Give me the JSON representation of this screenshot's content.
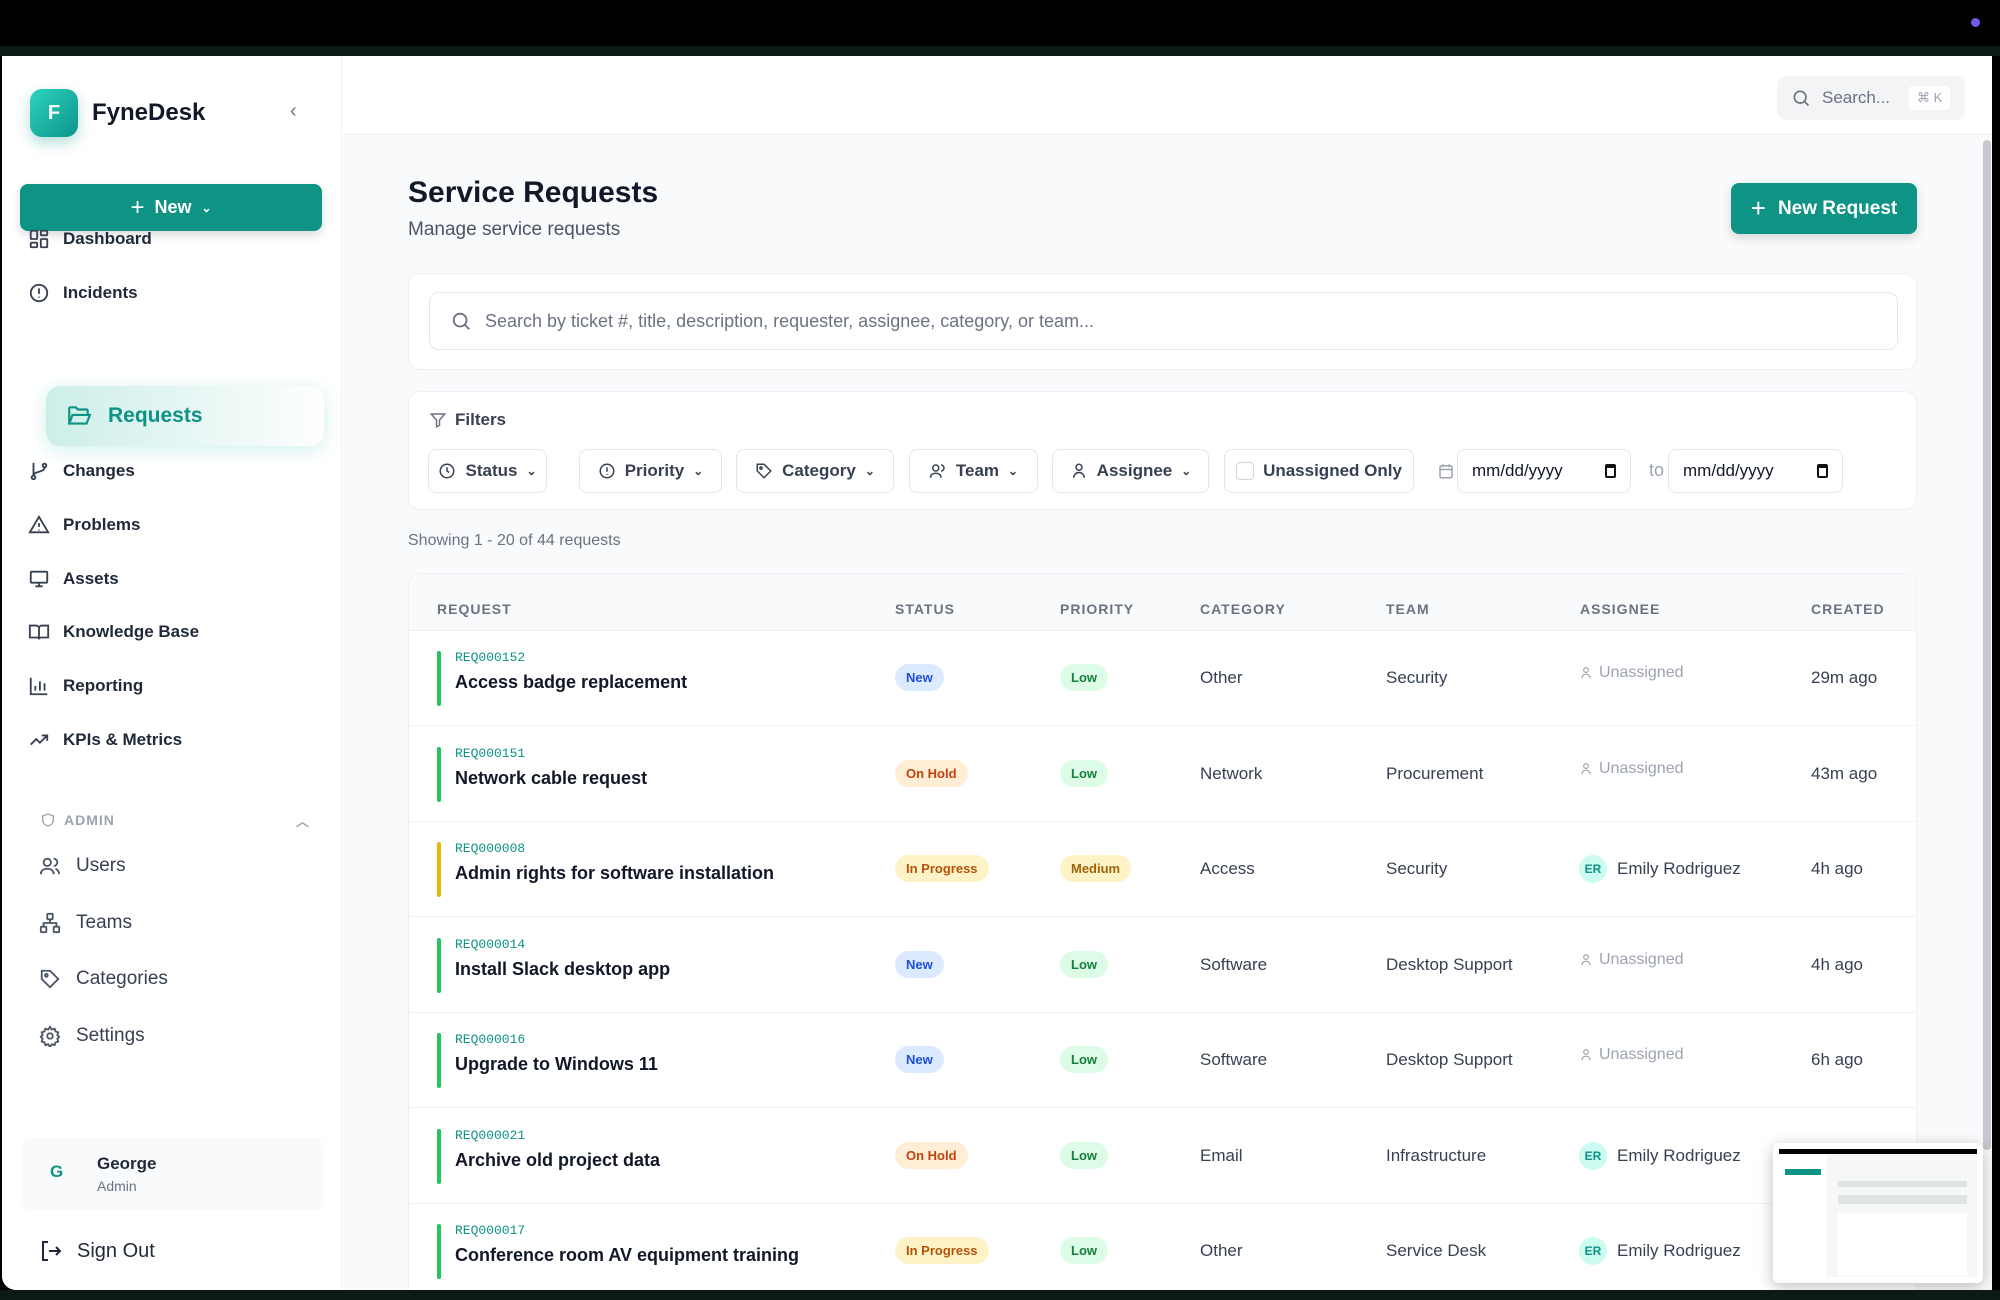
{
  "brand": {
    "logo_letter": "F",
    "name": "FyneDesk"
  },
  "sidebar": {
    "new_label": "New",
    "items": [
      {
        "label": "Dashboard",
        "icon": "dashboard-icon"
      },
      {
        "label": "Incidents",
        "icon": "alert-circle-icon"
      },
      {
        "label": "Requests",
        "icon": "folder-open-icon",
        "active": true
      },
      {
        "label": "Changes",
        "icon": "git-branch-icon"
      },
      {
        "label": "Problems",
        "icon": "warning-triangle-icon"
      },
      {
        "label": "Assets",
        "icon": "monitor-icon"
      },
      {
        "label": "Knowledge Base",
        "icon": "book-icon"
      },
      {
        "label": "Reporting",
        "icon": "bar-chart-icon"
      },
      {
        "label": "KPIs & Metrics",
        "icon": "trending-up-icon"
      }
    ],
    "admin_label": "ADMIN",
    "admin_items": [
      {
        "label": "Users",
        "icon": "users-icon"
      },
      {
        "label": "Teams",
        "icon": "teams-icon"
      },
      {
        "label": "Categories",
        "icon": "tag-icon"
      },
      {
        "label": "Settings",
        "icon": "gear-icon"
      }
    ],
    "user": {
      "initial": "G",
      "name": "George",
      "role": "Admin"
    },
    "sign_out": "Sign Out"
  },
  "header": {
    "search_label": "Search...",
    "shortcut": "⌘ K"
  },
  "page": {
    "title": "Service Requests",
    "subtitle": "Manage service requests",
    "new_request": "New Request",
    "search_placeholder": "Search by ticket #, title, description, requester, assignee, category, or team...",
    "filters_label": "Filters",
    "filters": {
      "status": "Status",
      "priority": "Priority",
      "category": "Category",
      "team": "Team",
      "assignee": "Assignee",
      "unassigned_only": "Unassigned Only",
      "date_from": "mm/dd/yyyy",
      "to": "to",
      "date_to": "mm/dd/yyyy"
    },
    "showing": "Showing 1 - 20 of 44 requests"
  },
  "table": {
    "columns": [
      "REQUEST",
      "STATUS",
      "PRIORITY",
      "CATEGORY",
      "TEAM",
      "ASSIGNEE",
      "CREATED"
    ],
    "rows": [
      {
        "id": "REQ000152",
        "title": "Access badge replacement",
        "status": "New",
        "priority": "Low",
        "category": "Other",
        "team": "Security",
        "assignee": "Unassigned",
        "created": "29m ago"
      },
      {
        "id": "REQ000151",
        "title": "Network cable request",
        "status": "On Hold",
        "priority": "Low",
        "category": "Network",
        "team": "Procurement",
        "assignee": "Unassigned",
        "created": "43m ago"
      },
      {
        "id": "REQ000008",
        "title": "Admin rights for software installation",
        "status": "In Progress",
        "priority": "Medium",
        "category": "Access",
        "team": "Security",
        "assignee": "Emily Rodriguez",
        "assignee_initials": "ER",
        "created": "4h ago"
      },
      {
        "id": "REQ000014",
        "title": "Install Slack desktop app",
        "status": "New",
        "priority": "Low",
        "category": "Software",
        "team": "Desktop Support",
        "assignee": "Unassigned",
        "created": "4h ago"
      },
      {
        "id": "REQ000016",
        "title": "Upgrade to Windows 11",
        "status": "New",
        "priority": "Low",
        "category": "Software",
        "team": "Desktop Support",
        "assignee": "Unassigned",
        "created": "6h ago"
      },
      {
        "id": "REQ000021",
        "title": "Archive old project data",
        "status": "On Hold",
        "priority": "Low",
        "category": "Email",
        "team": "Infrastructure",
        "assignee": "Emily Rodriguez",
        "assignee_initials": "ER",
        "created": ""
      },
      {
        "id": "REQ000017",
        "title": "Conference room AV equipment training",
        "status": "In Progress",
        "priority": "Low",
        "category": "Other",
        "team": "Service Desk",
        "assignee": "Emily Rodriguez",
        "assignee_initials": "ER",
        "created": ""
      }
    ]
  },
  "colors": {
    "accent": "#0e9384",
    "new_bg": "#dbeafe",
    "new_fg": "#1d4ed8",
    "hold_bg": "#ffedd5",
    "hold_fg": "#c2410c",
    "progress_bg": "#fef3c7",
    "progress_fg": "#b45309",
    "low_bg": "#dcfce7",
    "low_fg": "#15803d",
    "medium_bg": "#fef3c7",
    "medium_fg": "#a16207"
  }
}
